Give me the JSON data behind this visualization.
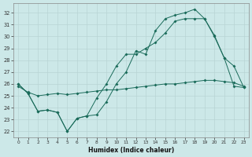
{
  "xlabel": "Humidex (Indice chaleur)",
  "background_color": "#cce8e8",
  "grid_color": "#b8d4d4",
  "line_color": "#1a6b5a",
  "xlim": [
    -0.5,
    23.5
  ],
  "ylim": [
    21.5,
    32.8
  ],
  "xticks": [
    0,
    1,
    2,
    3,
    4,
    5,
    6,
    7,
    8,
    9,
    10,
    11,
    12,
    13,
    14,
    15,
    16,
    17,
    18,
    19,
    20,
    21,
    22,
    23
  ],
  "yticks": [
    22,
    23,
    24,
    25,
    26,
    27,
    28,
    29,
    30,
    31,
    32
  ],
  "series1_x": [
    0,
    1,
    2,
    3,
    4,
    5,
    6,
    7,
    8,
    9,
    10,
    11,
    12,
    13,
    14,
    15,
    16,
    17,
    18,
    19,
    20,
    21,
    22,
    23
  ],
  "series1_y": [
    26.0,
    25.2,
    23.7,
    23.8,
    23.6,
    22.0,
    23.1,
    23.3,
    23.4,
    24.5,
    26.0,
    27.0,
    28.8,
    28.5,
    30.5,
    31.5,
    31.8,
    32.0,
    32.3,
    31.5,
    30.1,
    28.2,
    25.8,
    25.7
  ],
  "series2_x": [
    0,
    1,
    2,
    3,
    4,
    5,
    6,
    7,
    8,
    9,
    10,
    11,
    12,
    13,
    14,
    15,
    16,
    17,
    18,
    19,
    20,
    21,
    22,
    23
  ],
  "series2_y": [
    26.0,
    25.2,
    23.7,
    23.8,
    23.6,
    22.0,
    23.1,
    23.3,
    24.8,
    26.0,
    27.5,
    28.5,
    28.5,
    29.0,
    29.5,
    30.3,
    31.3,
    31.5,
    31.5,
    31.5,
    30.0,
    28.2,
    27.5,
    25.7
  ],
  "series3_x": [
    0,
    1,
    2,
    3,
    4,
    5,
    6,
    7,
    8,
    9,
    10,
    11,
    12,
    13,
    14,
    15,
    16,
    17,
    18,
    19,
    20,
    21,
    22,
    23
  ],
  "series3_y": [
    25.8,
    25.3,
    25.0,
    25.1,
    25.2,
    25.1,
    25.2,
    25.3,
    25.4,
    25.5,
    25.5,
    25.6,
    25.7,
    25.8,
    25.9,
    26.0,
    26.0,
    26.1,
    26.2,
    26.3,
    26.3,
    26.2,
    26.1,
    25.8
  ]
}
